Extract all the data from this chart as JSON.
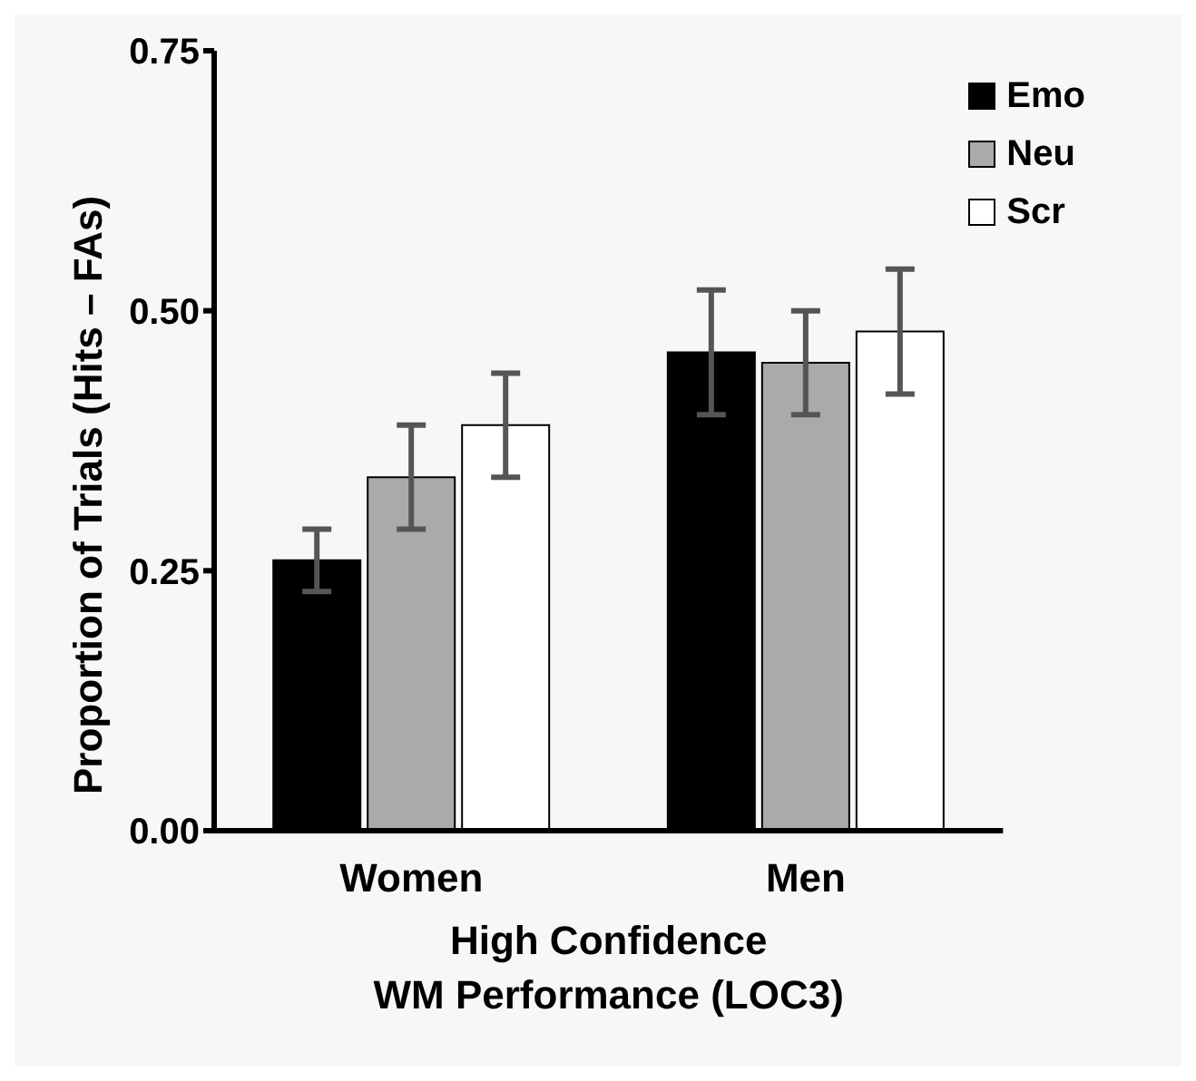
{
  "chart_data": {
    "type": "bar",
    "xlabel": "High Confidence\nWM Performance (LOC3)",
    "ylabel": "Proportion of Trials (Hits – FAs)",
    "categories": [
      "Women",
      "Men"
    ],
    "series": [
      {
        "name": "Emo",
        "color": "#000000",
        "values": [
          0.26,
          0.46
        ],
        "errors": [
          0.03,
          0.06
        ]
      },
      {
        "name": "Neu",
        "color": "#aaaaaa",
        "values": [
          0.34,
          0.45
        ],
        "errors": [
          0.05,
          0.05
        ]
      },
      {
        "name": "Scr",
        "color": "#ffffff",
        "values": [
          0.39,
          0.48
        ],
        "errors": [
          0.05,
          0.06
        ]
      }
    ],
    "ylim": [
      0,
      0.75
    ],
    "yticks": [
      {
        "value": 0,
        "label": "0.00"
      },
      {
        "value": 0.25,
        "label": "0.25"
      },
      {
        "value": 0.5,
        "label": "0.50"
      },
      {
        "value": 0.75,
        "label": "0.75"
      }
    ],
    "grid": false,
    "legend": "top right"
  }
}
